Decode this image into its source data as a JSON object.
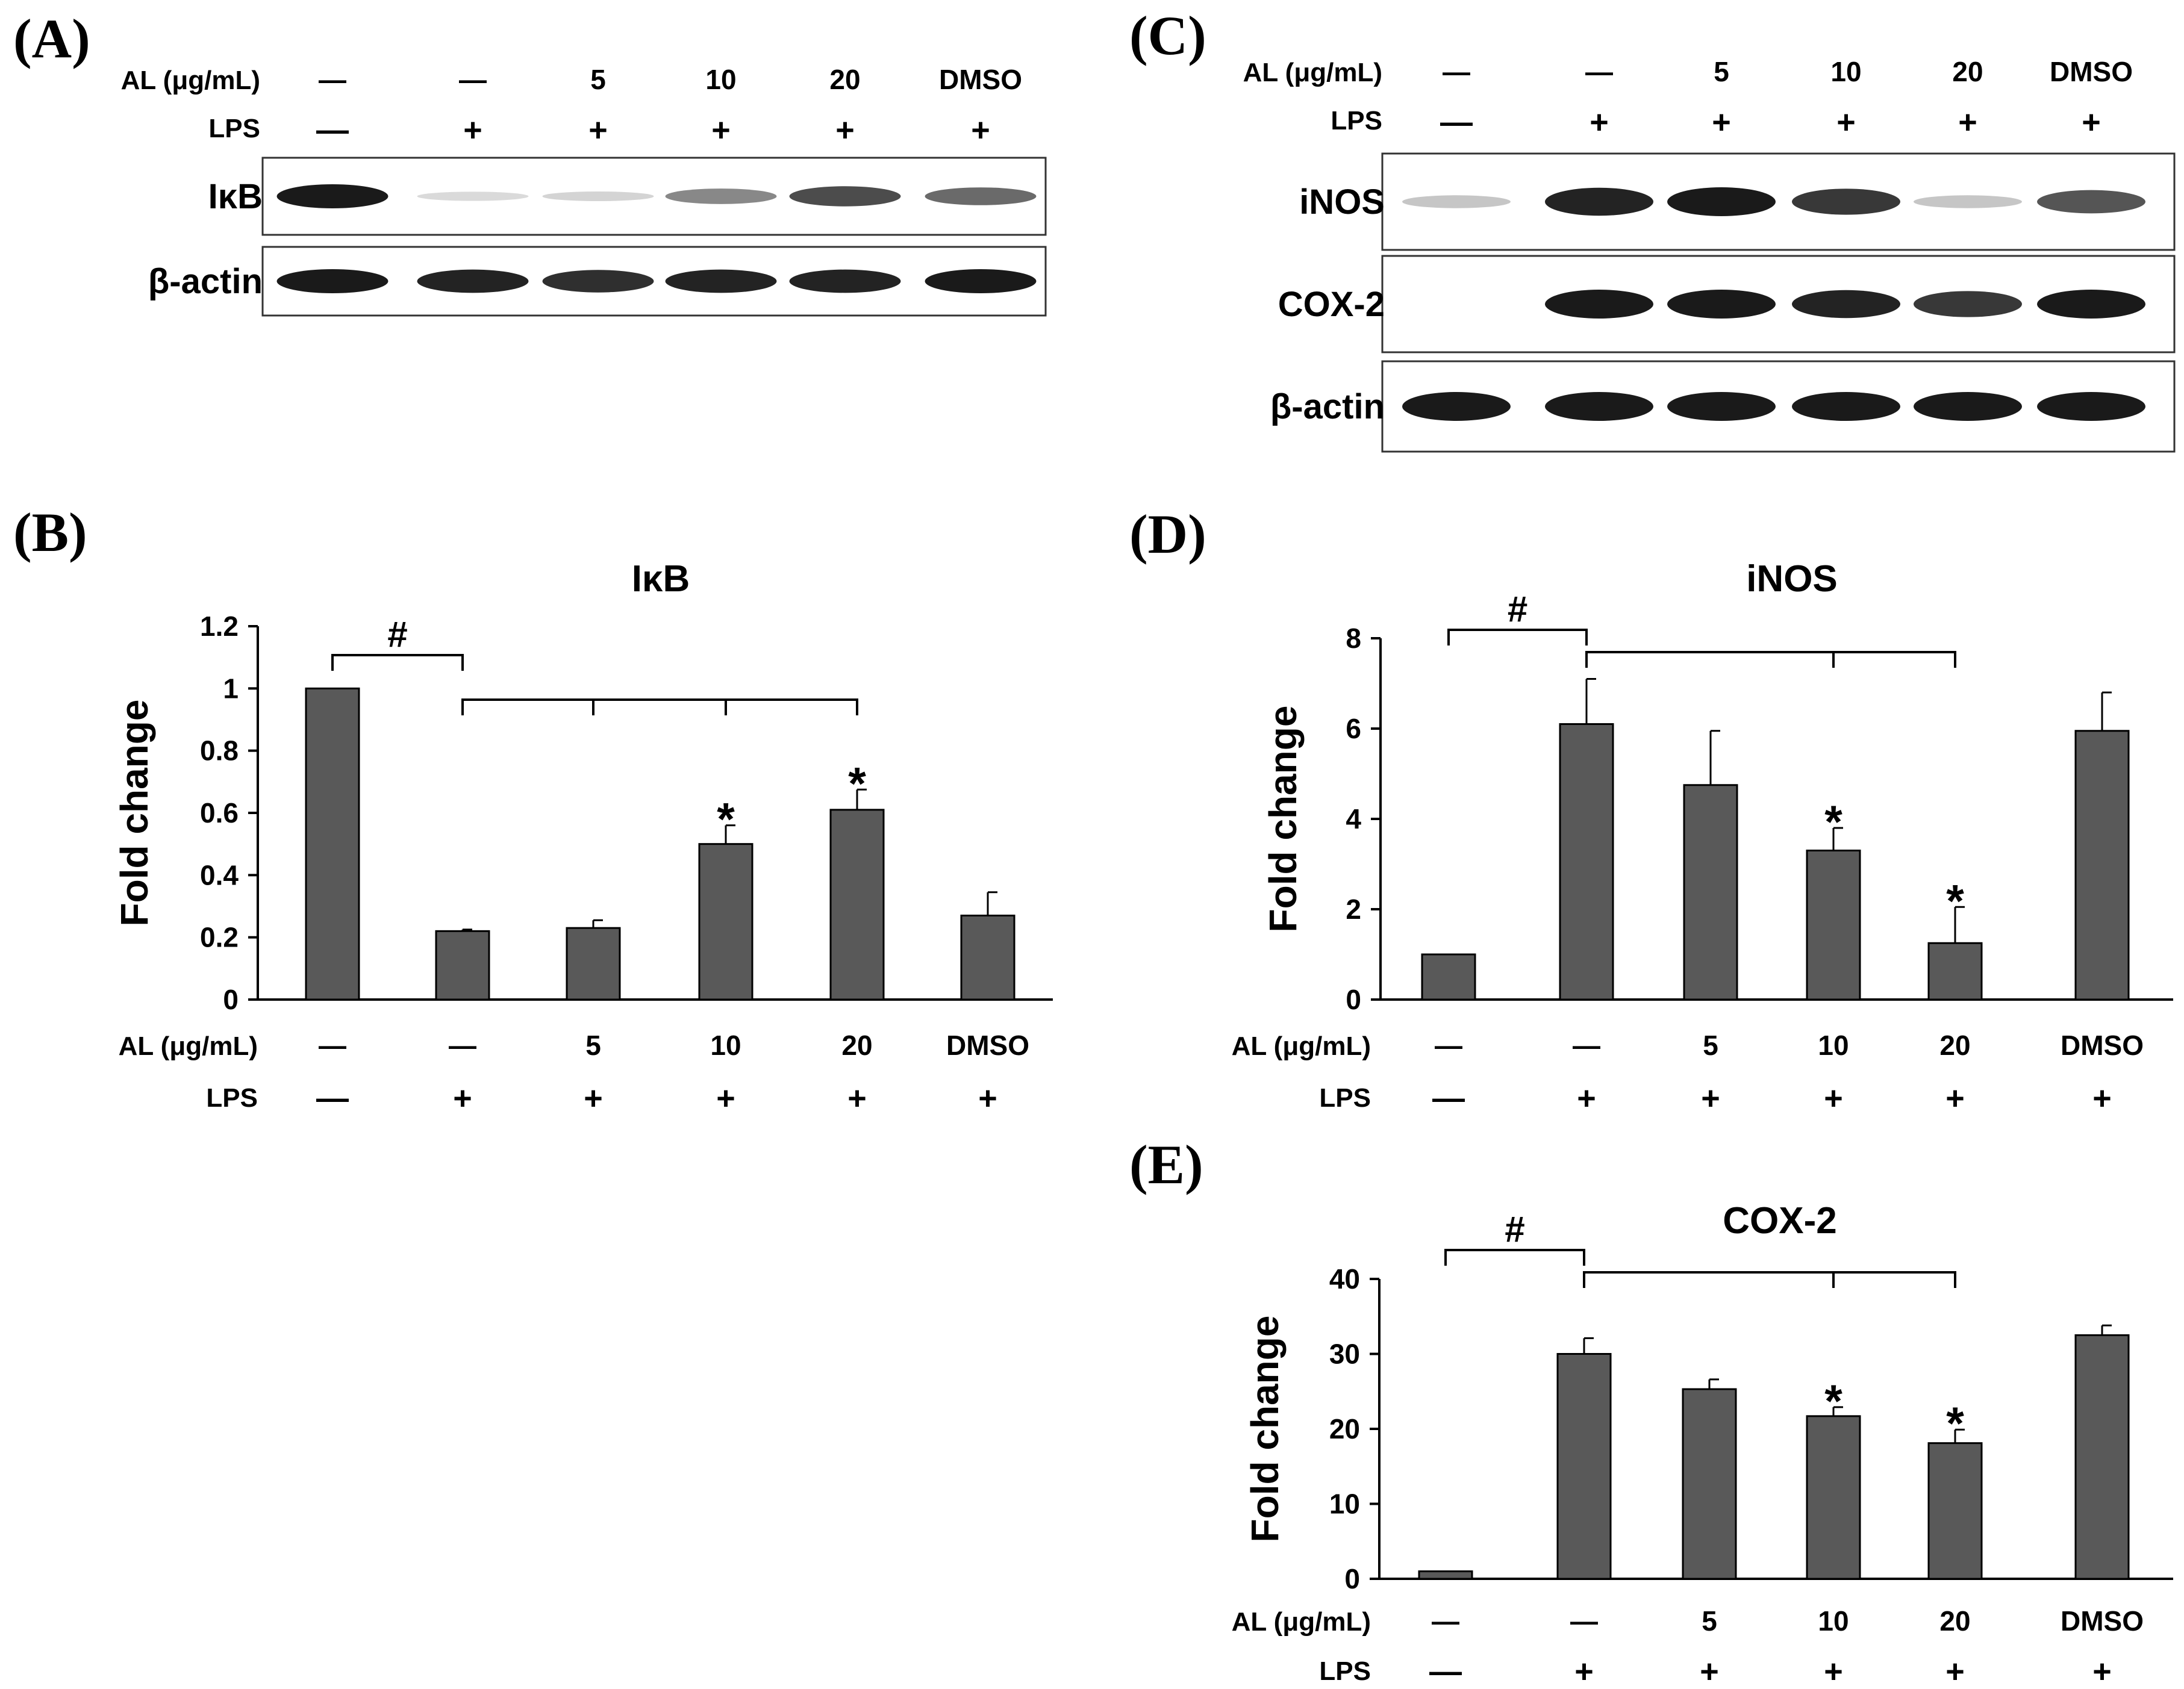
{
  "colors": {
    "bar": "#595959",
    "axis": "#000000",
    "band": "#1a1a1a",
    "background": "#ffffff"
  },
  "blots": [
    {
      "letter": "(A)",
      "row_labels": {
        "al": "AL (μg/mL)",
        "lps": "LPS"
      },
      "al": [
        "—",
        "—",
        "5",
        "10",
        "20",
        "DMSO"
      ],
      "lps": [
        "—",
        "+",
        "+",
        "+",
        "+",
        "+"
      ],
      "strips": [
        {
          "name": "IκB",
          "intensity": [
            1.0,
            0.05,
            0.08,
            0.45,
            0.75,
            0.6
          ]
        },
        {
          "name": "β-actin",
          "intensity": [
            1.0,
            0.95,
            0.9,
            0.95,
            0.95,
            1.0
          ]
        }
      ]
    },
    {
      "letter": "(C)",
      "row_labels": {
        "al": "AL (μg/mL)",
        "lps": "LPS"
      },
      "al": [
        "—",
        "—",
        "5",
        "10",
        "20",
        "DMSO"
      ],
      "lps": [
        "—",
        "+",
        "+",
        "+",
        "+",
        "+"
      ],
      "strips": [
        {
          "name": "iNOS",
          "intensity": [
            0.15,
            0.95,
            1.0,
            0.85,
            0.15,
            0.7
          ]
        },
        {
          "name": "COX-2",
          "intensity": [
            0.0,
            1.0,
            1.0,
            0.95,
            0.85,
            1.0
          ]
        },
        {
          "name": "β-actin",
          "intensity": [
            1.0,
            1.0,
            1.0,
            1.0,
            1.0,
            1.0
          ]
        }
      ]
    }
  ],
  "chart_data": [
    {
      "letter": "(B)",
      "type": "bar",
      "title": "IκB",
      "ylabel": "Fold change",
      "ylim": [
        0,
        1.2
      ],
      "yticks": [
        "0",
        "0.2",
        "0.4",
        "0.6",
        "0.8",
        "1",
        "1.2"
      ],
      "tick_values": [
        0,
        0.2,
        0.4,
        0.6,
        0.8,
        1.0,
        1.2
      ],
      "values": [
        1.0,
        0.22,
        0.23,
        0.5,
        0.61,
        0.27
      ],
      "errors": [
        0.0,
        0.005,
        0.025,
        0.06,
        0.065,
        0.075
      ],
      "star": [
        "",
        "",
        "",
        "*",
        "*",
        ""
      ],
      "hash": "#",
      "bracket_targets": [
        2,
        3,
        4
      ],
      "row_labels": {
        "al": "AL (μg/mL)",
        "lps": "LPS"
      },
      "al": [
        "—",
        "—",
        "5",
        "10",
        "20",
        "DMSO"
      ],
      "lps": [
        "—",
        "+",
        "+",
        "+",
        "+",
        "+"
      ]
    },
    {
      "letter": "(D)",
      "type": "bar",
      "title": "iNOS",
      "ylabel": "Fold change",
      "ylim": [
        0,
        8
      ],
      "yticks": [
        "0",
        "2",
        "4",
        "6",
        "8"
      ],
      "tick_values": [
        0,
        2,
        4,
        6,
        8
      ],
      "values": [
        1.0,
        6.1,
        4.75,
        3.3,
        1.25,
        5.95
      ],
      "errors": [
        0.0,
        1.0,
        1.2,
        0.5,
        0.8,
        0.85
      ],
      "star": [
        "",
        "",
        "",
        "*",
        "*",
        ""
      ],
      "hash": "#",
      "bracket_targets": [
        3,
        4
      ],
      "row_labels": {
        "al": "AL (μg/mL)",
        "lps": "LPS"
      },
      "al": [
        "—",
        "—",
        "5",
        "10",
        "20",
        "DMSO"
      ],
      "lps": [
        "—",
        "+",
        "+",
        "+",
        "+",
        "+"
      ]
    },
    {
      "letter": "(E)",
      "type": "bar",
      "title": "COX-2",
      "ylabel": "Fold change",
      "ylim": [
        0,
        40
      ],
      "yticks": [
        "0",
        "10",
        "20",
        "30",
        "40"
      ],
      "tick_values": [
        0,
        10,
        20,
        30,
        40
      ],
      "values": [
        1.0,
        30.0,
        25.3,
        21.7,
        18.1,
        32.5
      ],
      "errors": [
        0.0,
        2.1,
        1.3,
        1.2,
        1.8,
        1.3
      ],
      "star": [
        "",
        "",
        "",
        "*",
        "*",
        ""
      ],
      "hash": "#",
      "bracket_targets": [
        3,
        4
      ],
      "row_labels": {
        "al": "AL (μg/mL)",
        "lps": "LPS"
      },
      "al": [
        "—",
        "—",
        "5",
        "10",
        "20",
        "DMSO"
      ],
      "lps": [
        "—",
        "+",
        "+",
        "+",
        "+",
        "+"
      ]
    }
  ]
}
